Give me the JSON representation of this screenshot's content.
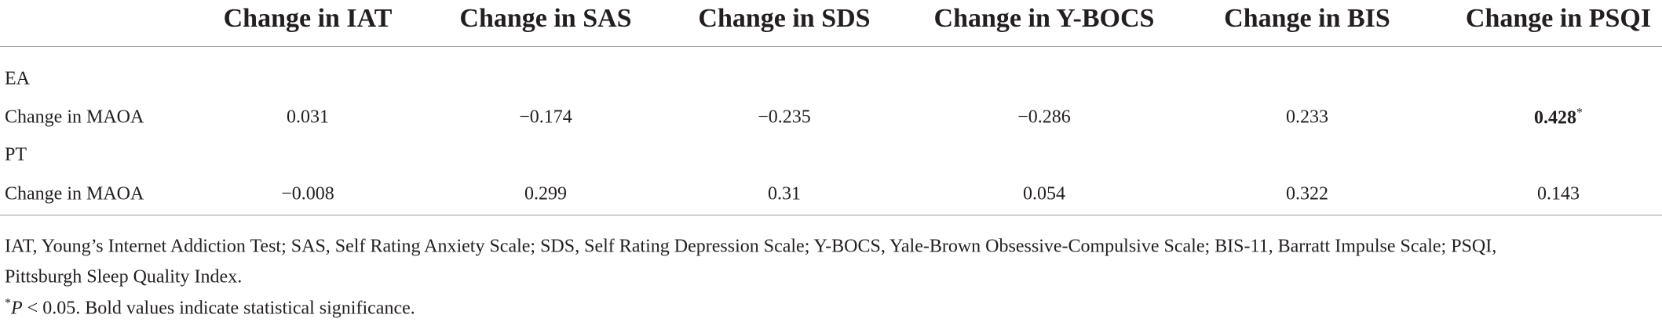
{
  "table": {
    "columns": [
      "Change in IAT",
      "Change in SAS",
      "Change in SDS",
      "Change in Y-BOCS",
      "Change in BIS",
      "Change in PSQI"
    ],
    "groups": [
      {
        "label": "EA",
        "row_label": "Change in MAOA",
        "cells": [
          {
            "text": "0.031"
          },
          {
            "text": "−0.174"
          },
          {
            "text": "−0.235"
          },
          {
            "text": "−0.286"
          },
          {
            "text": "0.233"
          },
          {
            "text": "0.428",
            "bold": true,
            "note": "*"
          }
        ]
      },
      {
        "label": "PT",
        "row_label": "Change in MAOA",
        "cells": [
          {
            "text": "−0.008"
          },
          {
            "text": "0.299"
          },
          {
            "text": "0.31"
          },
          {
            "text": "0.054"
          },
          {
            "text": "0.322"
          },
          {
            "text": "0.143"
          }
        ]
      }
    ]
  },
  "footnotes": {
    "abbreviations": [
      "IAT, Young’s Internet Addiction Test; SAS, Self Rating Anxiety Scale; SDS, Self Rating Depression Scale; Y-BOCS, Yale-Brown Obsessive-Compulsive Scale; BIS-11, Barratt Impulse Scale; PSQI,",
      "Pittsburgh Sleep Quality Index."
    ],
    "significance": {
      "mark": "*",
      "symbol": "P",
      "text": " < 0.05. Bold values indicate statistical significance."
    }
  }
}
